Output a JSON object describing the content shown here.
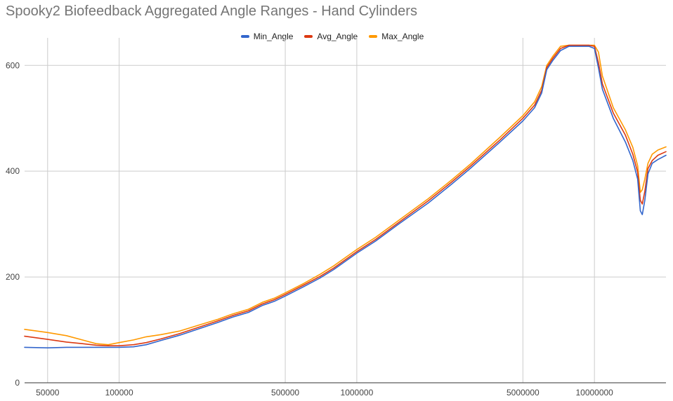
{
  "chart_data": {
    "type": "line",
    "title": "Spooky2 Biofeedback Aggregated Angle Ranges -  Hand Cylinders",
    "xlabel": "",
    "ylabel": "",
    "x_scale": "log",
    "xlim": [
      40000,
      20000000
    ],
    "ylim": [
      0,
      660
    ],
    "grid": true,
    "legend_position": "top",
    "x_ticks": [
      {
        "value": 50000,
        "label": "50000"
      },
      {
        "value": 100000,
        "label": "100000"
      },
      {
        "value": 500000,
        "label": "500000"
      },
      {
        "value": 1000000,
        "label": "1000000"
      },
      {
        "value": 5000000,
        "label": "5000000"
      },
      {
        "value": 10000000,
        "label": "10000000"
      }
    ],
    "y_ticks": [
      {
        "value": 0,
        "label": "0"
      },
      {
        "value": 200,
        "label": "200"
      },
      {
        "value": 400,
        "label": "400"
      },
      {
        "value": 600,
        "label": "600"
      }
    ],
    "series": [
      {
        "name": "Min_Angle",
        "color": "#3366cc",
        "points": [
          [
            40000,
            67
          ],
          [
            50000,
            66
          ],
          [
            60000,
            67
          ],
          [
            70000,
            67
          ],
          [
            80000,
            67
          ],
          [
            90000,
            67
          ],
          [
            100000,
            67
          ],
          [
            115000,
            68
          ],
          [
            130000,
            72
          ],
          [
            150000,
            80
          ],
          [
            180000,
            90
          ],
          [
            220000,
            103
          ],
          [
            260000,
            114
          ],
          [
            300000,
            124
          ],
          [
            350000,
            133
          ],
          [
            400000,
            146
          ],
          [
            450000,
            154
          ],
          [
            500000,
            164
          ],
          [
            600000,
            182
          ],
          [
            700000,
            198
          ],
          [
            800000,
            214
          ],
          [
            1000000,
            245
          ],
          [
            1200000,
            268
          ],
          [
            1500000,
            300
          ],
          [
            2000000,
            340
          ],
          [
            2500000,
            375
          ],
          [
            3000000,
            405
          ],
          [
            4000000,
            455
          ],
          [
            5000000,
            495
          ],
          [
            5600000,
            520
          ],
          [
            6000000,
            548
          ],
          [
            6300000,
            592
          ],
          [
            6700000,
            610
          ],
          [
            7200000,
            628
          ],
          [
            7800000,
            636
          ],
          [
            8500000,
            636
          ],
          [
            9500000,
            636
          ],
          [
            10000000,
            632
          ],
          [
            10400000,
            595
          ],
          [
            10800000,
            555
          ],
          [
            12000000,
            500
          ],
          [
            13500000,
            455
          ],
          [
            14500000,
            420
          ],
          [
            15200000,
            385
          ],
          [
            15600000,
            325
          ],
          [
            15900000,
            318
          ],
          [
            16300000,
            345
          ],
          [
            16800000,
            395
          ],
          [
            17500000,
            415
          ],
          [
            18500000,
            422
          ],
          [
            20000000,
            430
          ]
        ]
      },
      {
        "name": "Avg_Angle",
        "color": "#dc3912",
        "points": [
          [
            40000,
            88
          ],
          [
            50000,
            82
          ],
          [
            60000,
            77
          ],
          [
            70000,
            74
          ],
          [
            80000,
            71
          ],
          [
            90000,
            70
          ],
          [
            100000,
            70
          ],
          [
            115000,
            72
          ],
          [
            130000,
            76
          ],
          [
            150000,
            83
          ],
          [
            180000,
            93
          ],
          [
            220000,
            106
          ],
          [
            260000,
            117
          ],
          [
            300000,
            127
          ],
          [
            350000,
            136
          ],
          [
            400000,
            149
          ],
          [
            450000,
            157
          ],
          [
            500000,
            167
          ],
          [
            600000,
            185
          ],
          [
            700000,
            201
          ],
          [
            800000,
            217
          ],
          [
            1000000,
            248
          ],
          [
            1200000,
            271
          ],
          [
            1500000,
            303
          ],
          [
            2000000,
            344
          ],
          [
            2500000,
            379
          ],
          [
            3000000,
            409
          ],
          [
            4000000,
            459
          ],
          [
            5000000,
            500
          ],
          [
            5600000,
            525
          ],
          [
            6000000,
            553
          ],
          [
            6300000,
            596
          ],
          [
            6700000,
            614
          ],
          [
            7200000,
            632
          ],
          [
            7800000,
            638
          ],
          [
            8500000,
            638
          ],
          [
            9500000,
            638
          ],
          [
            10000000,
            636
          ],
          [
            10400000,
            605
          ],
          [
            10800000,
            565
          ],
          [
            12000000,
            510
          ],
          [
            13500000,
            468
          ],
          [
            14500000,
            432
          ],
          [
            15200000,
            398
          ],
          [
            15600000,
            345
          ],
          [
            15900000,
            338
          ],
          [
            16300000,
            362
          ],
          [
            16800000,
            405
          ],
          [
            17500000,
            420
          ],
          [
            18500000,
            430
          ],
          [
            20000000,
            437
          ]
        ]
      },
      {
        "name": "Max_Angle",
        "color": "#ff9900",
        "points": [
          [
            40000,
            101
          ],
          [
            50000,
            95
          ],
          [
            60000,
            89
          ],
          [
            70000,
            81
          ],
          [
            80000,
            74
          ],
          [
            90000,
            72
          ],
          [
            100000,
            76
          ],
          [
            115000,
            81
          ],
          [
            130000,
            87
          ],
          [
            150000,
            91
          ],
          [
            180000,
            98
          ],
          [
            220000,
            110
          ],
          [
            260000,
            120
          ],
          [
            300000,
            130
          ],
          [
            350000,
            139
          ],
          [
            400000,
            152
          ],
          [
            450000,
            160
          ],
          [
            500000,
            170
          ],
          [
            600000,
            188
          ],
          [
            700000,
            205
          ],
          [
            800000,
            221
          ],
          [
            1000000,
            252
          ],
          [
            1200000,
            275
          ],
          [
            1500000,
            307
          ],
          [
            2000000,
            348
          ],
          [
            2500000,
            383
          ],
          [
            3000000,
            413
          ],
          [
            4000000,
            464
          ],
          [
            5000000,
            505
          ],
          [
            5600000,
            531
          ],
          [
            6000000,
            560
          ],
          [
            6300000,
            600
          ],
          [
            6700000,
            618
          ],
          [
            7200000,
            636
          ],
          [
            7800000,
            638
          ],
          [
            8500000,
            638
          ],
          [
            9500000,
            638
          ],
          [
            10000000,
            638
          ],
          [
            10400000,
            625
          ],
          [
            10800000,
            580
          ],
          [
            12000000,
            520
          ],
          [
            13500000,
            478
          ],
          [
            14500000,
            445
          ],
          [
            15200000,
            410
          ],
          [
            15600000,
            360
          ],
          [
            15900000,
            365
          ],
          [
            16300000,
            385
          ],
          [
            16800000,
            415
          ],
          [
            17500000,
            432
          ],
          [
            18500000,
            440
          ],
          [
            20000000,
            446
          ]
        ]
      }
    ]
  }
}
